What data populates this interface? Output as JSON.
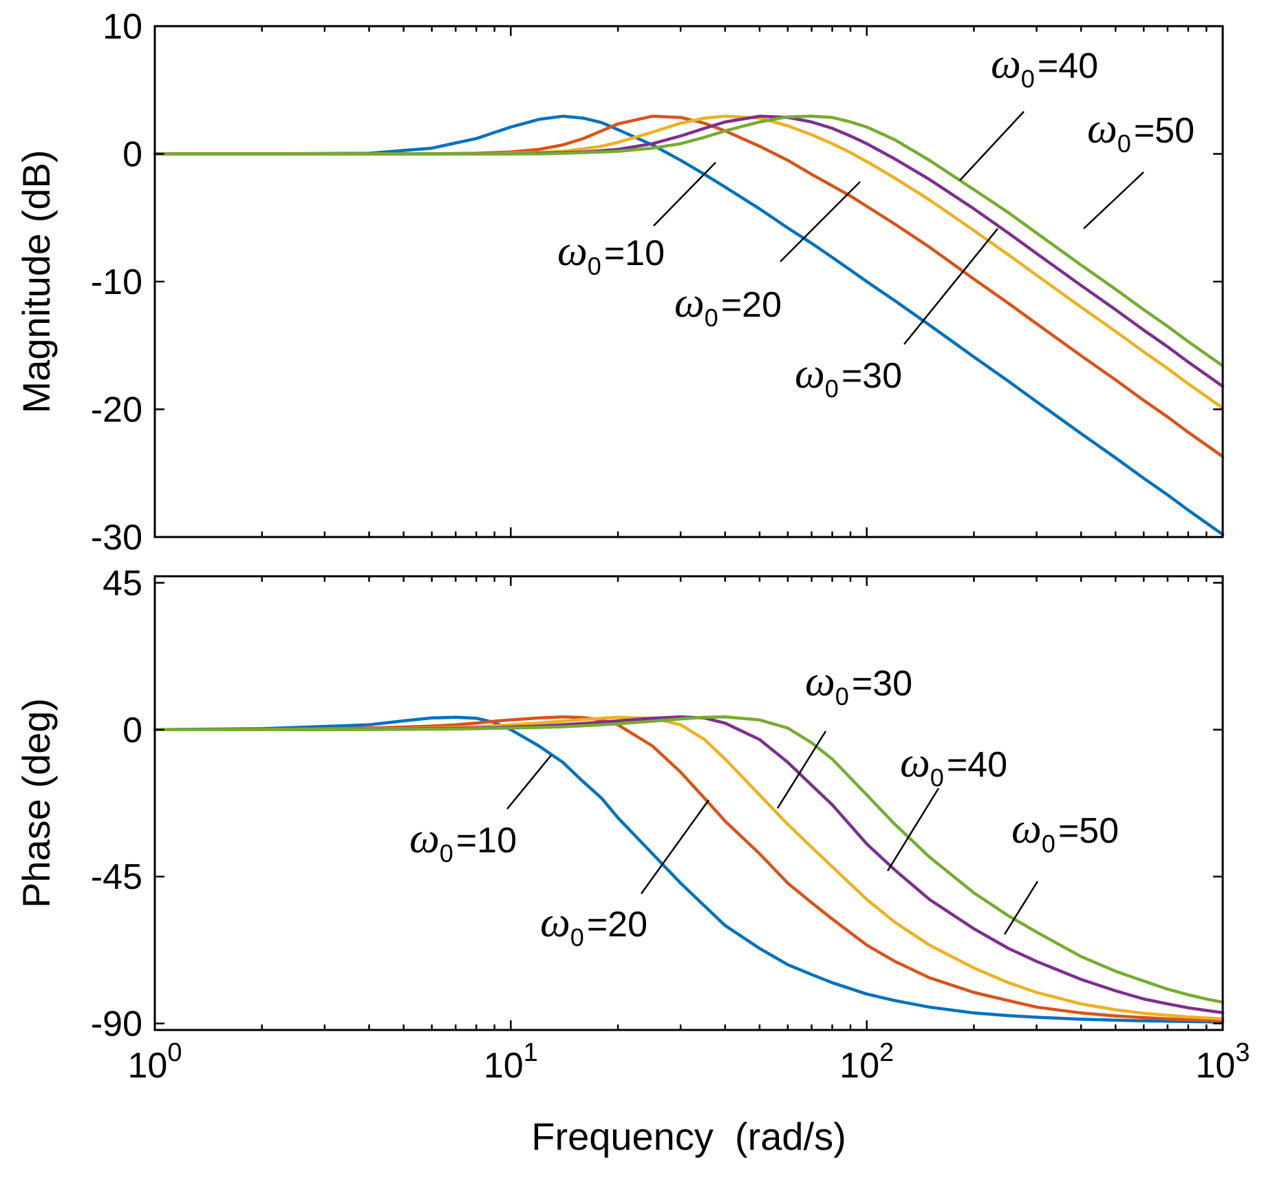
{
  "chart_data": [
    {
      "type": "line",
      "panel": "magnitude",
      "title": "",
      "xlabel": "",
      "ylabel": "Magnitude (dB)",
      "xscale": "log",
      "xlim": [
        1,
        1000
      ],
      "ylim": [
        -30,
        10
      ],
      "yticks": [
        10,
        0,
        -10,
        -20,
        -30
      ],
      "ytick_labels": [
        "10",
        "0",
        "-10",
        "-20",
        "-30"
      ],
      "grid": false,
      "x": [
        1,
        2,
        4,
        6,
        8,
        10,
        12,
        14,
        16,
        18,
        20,
        25,
        30,
        35,
        40,
        50,
        60,
        70,
        80,
        90,
        100,
        120,
        150,
        200,
        250,
        300,
        400,
        500,
        600,
        700,
        800,
        900,
        1000
      ],
      "series": [
        {
          "label_key": "w10",
          "color": "#0072BD",
          "values": [
            0,
            0,
            0.05,
            0.45,
            1.2,
            2.1,
            2.7,
            2.95,
            2.8,
            2.45,
            1.9,
            0.7,
            -0.5,
            -1.6,
            -2.6,
            -4.3,
            -5.8,
            -7.0,
            -8.1,
            -9.1,
            -10.0,
            -11.5,
            -13.4,
            -15.9,
            -17.8,
            -19.4,
            -21.9,
            -23.8,
            -25.4,
            -26.7,
            -27.9,
            -28.9,
            -29.8
          ]
        },
        {
          "label_key": "w20",
          "color": "#D95319",
          "values": [
            0,
            0,
            0,
            0,
            0.05,
            0.15,
            0.35,
            0.7,
            1.2,
            1.8,
            2.35,
            2.95,
            2.85,
            2.4,
            1.8,
            0.6,
            -0.5,
            -1.6,
            -2.5,
            -3.3,
            -4.1,
            -5.5,
            -7.3,
            -9.8,
            -11.7,
            -13.3,
            -15.8,
            -17.7,
            -19.3,
            -20.6,
            -21.8,
            -22.8,
            -23.7
          ]
        },
        {
          "label_key": "w30",
          "color": "#EDB120",
          "values": [
            0,
            0,
            0,
            0,
            0,
            0.05,
            0.1,
            0.2,
            0.4,
            0.6,
            0.9,
            1.7,
            2.4,
            2.8,
            2.95,
            2.8,
            2.2,
            1.5,
            0.8,
            0.1,
            -0.6,
            -1.9,
            -3.6,
            -6.0,
            -7.9,
            -9.5,
            -12.0,
            -13.9,
            -15.5,
            -16.8,
            -18.0,
            -19.0,
            -19.9
          ]
        },
        {
          "label_key": "w40",
          "color": "#7E2F8E",
          "values": [
            0,
            0,
            0,
            0,
            0,
            0,
            0.05,
            0.1,
            0.15,
            0.25,
            0.35,
            0.8,
            1.4,
            2.0,
            2.5,
            2.95,
            2.85,
            2.5,
            2.0,
            1.4,
            0.8,
            -0.4,
            -2.0,
            -4.3,
            -6.2,
            -7.8,
            -10.3,
            -12.2,
            -13.8,
            -15.1,
            -16.3,
            -17.3,
            -18.2
          ]
        },
        {
          "label_key": "w50",
          "color": "#77AC30",
          "values": [
            0,
            0,
            0,
            0,
            0,
            0,
            0,
            0.05,
            0.1,
            0.15,
            0.2,
            0.45,
            0.8,
            1.3,
            1.8,
            2.5,
            2.9,
            2.95,
            2.85,
            2.5,
            2.1,
            1.1,
            -0.5,
            -2.8,
            -4.6,
            -6.2,
            -8.7,
            -10.6,
            -12.2,
            -13.5,
            -14.7,
            -15.7,
            -16.6
          ]
        }
      ],
      "annotations": [
        {
          "label_key": "w10"
        },
        {
          "label_key": "w20"
        },
        {
          "label_key": "w30"
        },
        {
          "label_key": "w40"
        },
        {
          "label_key": "w50"
        }
      ]
    },
    {
      "type": "line",
      "panel": "phase",
      "title": "",
      "xlabel": "Frequency  (rad/s)",
      "ylabel": "Phase (deg)",
      "xscale": "log",
      "xlim": [
        1,
        1000
      ],
      "ylim": [
        -92,
        47
      ],
      "yticks": [
        45,
        0,
        -45,
        -90
      ],
      "ytick_labels": [
        "45",
        "0",
        "-45",
        "-90"
      ],
      "xticks": [
        1,
        10,
        100,
        1000
      ],
      "xtick_bases": [
        "10",
        "10",
        "10",
        "10"
      ],
      "xtick_exponents": [
        "0",
        "1",
        "2",
        "3"
      ],
      "grid": false,
      "x": [
        1,
        2,
        4,
        5,
        6,
        7,
        8,
        9,
        10,
        12,
        14,
        16,
        18,
        20,
        25,
        30,
        35,
        40,
        50,
        60,
        70,
        80,
        100,
        120,
        150,
        200,
        250,
        300,
        400,
        500,
        600,
        700,
        800,
        900,
        1000
      ],
      "series": [
        {
          "label_key": "w10",
          "color": "#0072BD",
          "values": [
            0,
            0.3,
            1.5,
            2.7,
            3.6,
            3.8,
            3.5,
            2.2,
            0,
            -5,
            -10,
            -16,
            -21,
            -27,
            -38,
            -47,
            -54,
            -60,
            -67,
            -72,
            -75,
            -77.5,
            -81,
            -83,
            -85,
            -86.8,
            -87.6,
            -88.1,
            -88.7,
            -89.0,
            -89.2,
            -89.3,
            -89.4,
            -89.5,
            -89.6
          ]
        },
        {
          "label_key": "w20",
          "color": "#D95319",
          "values": [
            0,
            0.1,
            0.5,
            0.8,
            1.1,
            1.5,
            2.0,
            2.6,
            3.0,
            3.6,
            3.9,
            3.7,
            3.0,
            1.5,
            -5,
            -13,
            -21,
            -28,
            -38,
            -47,
            -53,
            -58,
            -66,
            -71,
            -76,
            -80.5,
            -83,
            -85,
            -86.8,
            -87.7,
            -88.2,
            -88.6,
            -88.9,
            -89.1,
            -89.2
          ]
        },
        {
          "label_key": "w30",
          "color": "#EDB120",
          "values": [
            0,
            0,
            0.2,
            0.3,
            0.5,
            0.7,
            0.9,
            1.2,
            1.5,
            2.0,
            2.6,
            3.1,
            3.5,
            3.8,
            3.5,
            1.5,
            -3,
            -9,
            -20,
            -29,
            -36,
            -42,
            -52,
            -59,
            -66,
            -73,
            -77.5,
            -80.5,
            -84,
            -85.8,
            -86.9,
            -87.5,
            -88.0,
            -88.3,
            -88.6
          ]
        },
        {
          "label_key": "w40",
          "color": "#7E2F8E",
          "values": [
            0,
            0,
            0.1,
            0.2,
            0.3,
            0.4,
            0.5,
            0.6,
            0.8,
            1.1,
            1.5,
            1.9,
            2.3,
            2.7,
            3.5,
            3.9,
            3.6,
            2.0,
            -3,
            -10,
            -17,
            -23,
            -35,
            -43,
            -52,
            -61,
            -67,
            -71,
            -76.5,
            -80,
            -82.5,
            -84,
            -85.2,
            -86.0,
            -86.7
          ]
        },
        {
          "label_key": "w50",
          "color": "#77AC30",
          "values": [
            0,
            0,
            0.05,
            0.1,
            0.15,
            0.2,
            0.3,
            0.4,
            0.5,
            0.7,
            0.9,
            1.2,
            1.5,
            1.8,
            2.6,
            3.3,
            3.8,
            3.9,
            3.0,
            0.5,
            -4,
            -9,
            -20,
            -29,
            -39,
            -50,
            -57,
            -62,
            -69.5,
            -74,
            -77,
            -79.5,
            -81.2,
            -82.5,
            -83.5
          ]
        }
      ],
      "annotations": [
        {
          "label_key": "w10"
        },
        {
          "label_key": "w20"
        },
        {
          "label_key": "w30"
        },
        {
          "label_key": "w40"
        },
        {
          "label_key": "w50"
        }
      ]
    }
  ],
  "legend_labels": {
    "w10": {
      "symbol": "ω",
      "subscript": "0",
      "text": "=10"
    },
    "w20": {
      "symbol": "ω",
      "subscript": "0",
      "text": "=20"
    },
    "w30": {
      "symbol": "ω",
      "subscript": "0",
      "text": "=30"
    },
    "w40": {
      "symbol": "ω",
      "subscript": "0",
      "text": "=40"
    },
    "w50": {
      "symbol": "ω",
      "subscript": "0",
      "text": "=50"
    }
  }
}
